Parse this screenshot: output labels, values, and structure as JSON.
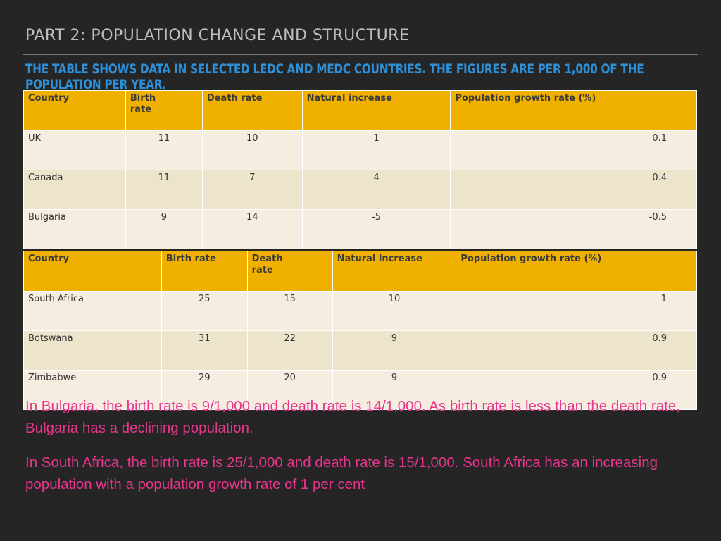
{
  "title": "PART 2: POPULATION CHANGE AND STRUCTURE",
  "subtitle": "THE TABLE SHOWS DATA IN SELECTED LEDC AND MEDC COUNTRIES. THE FIGURES ARE PER 1,000 OF THE POPULATION PER YEAR.",
  "medc_table": {
    "headers": [
      "Country",
      "Birth rate",
      "Death rate",
      "Natural increase",
      "Population growth rate (%)"
    ],
    "rows": [
      [
        "UK",
        "11",
        "10",
        "1",
        "0.1"
      ],
      [
        "Canada",
        "11",
        "7",
        "4",
        "0.4"
      ],
      [
        "Bulgaria",
        "9",
        "14",
        "-5",
        "-0.5"
      ]
    ]
  },
  "ledc_table": {
    "headers": [
      "Country",
      "Birth rate",
      "Death rate",
      "Natural increase",
      "Population growth rate (%)"
    ],
    "rows": [
      [
        "South Africa",
        "25",
        "15",
        "10",
        "1"
      ],
      [
        "Botswana",
        "31",
        "22",
        "9",
        "0.9"
      ],
      [
        "Zimbabwe",
        "29",
        "20",
        "9",
        "0.9"
      ]
    ]
  },
  "notes": [
    "In Bulgaria, the birth rate is 9/1,000 and death rate is 14/1,000. As birth rate is less than the death rate, Bulgaria has a declining population.",
    "In South Africa, the birth rate is 25/1,000 and death rate is 15/1,000. South Africa has an increasing population with a population growth rate of 1 per cent"
  ]
}
